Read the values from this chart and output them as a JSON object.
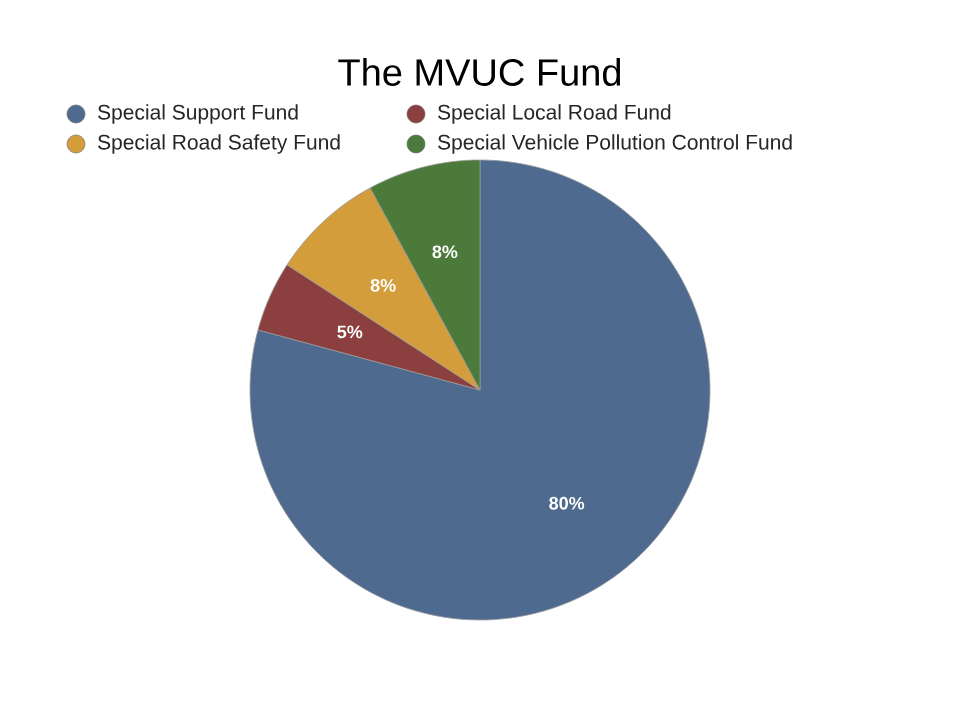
{
  "chart_data": {
    "type": "pie",
    "title": "The MVUC Fund",
    "categories": [
      "Special Support Fund",
      "Special Local Road Fund",
      "Special Road Safety Fund",
      "Special Vehicle Pollution Control Fund"
    ],
    "values": [
      80,
      5,
      8,
      8
    ],
    "value_labels": [
      "80%",
      "5%",
      "8%",
      "8%"
    ],
    "colors": [
      "#4f6a8f",
      "#8c3f3f",
      "#d49d3c",
      "#4b7a3b"
    ],
    "legend": "top"
  }
}
